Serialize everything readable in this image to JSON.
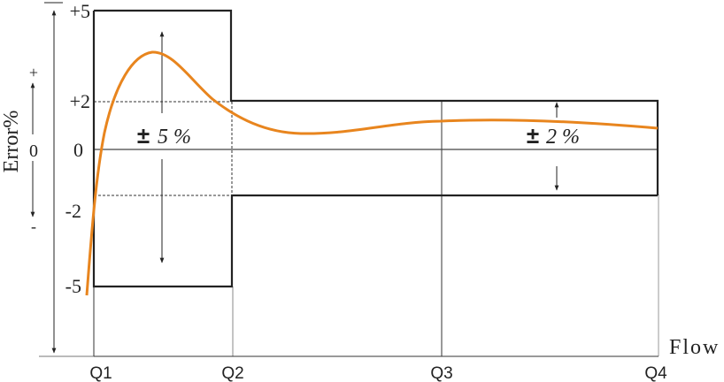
{
  "y_axis": {
    "title": "Error%",
    "tick_labels": [
      "+5",
      "+2",
      "0",
      "-2",
      "-5"
    ],
    "direction_plus": "+",
    "direction_zero": "0",
    "direction_minus": "-"
  },
  "x_axis": {
    "title": "Flow",
    "tick_labels": [
      "Q1",
      "Q2",
      "Q3",
      "Q4"
    ]
  },
  "zones": {
    "low_flow": {
      "sign": "±",
      "value": "5 %"
    },
    "high_flow": {
      "sign": "±",
      "value": "2 %"
    }
  },
  "colors": {
    "curve": "#E8851E",
    "lines": "#222222"
  }
}
